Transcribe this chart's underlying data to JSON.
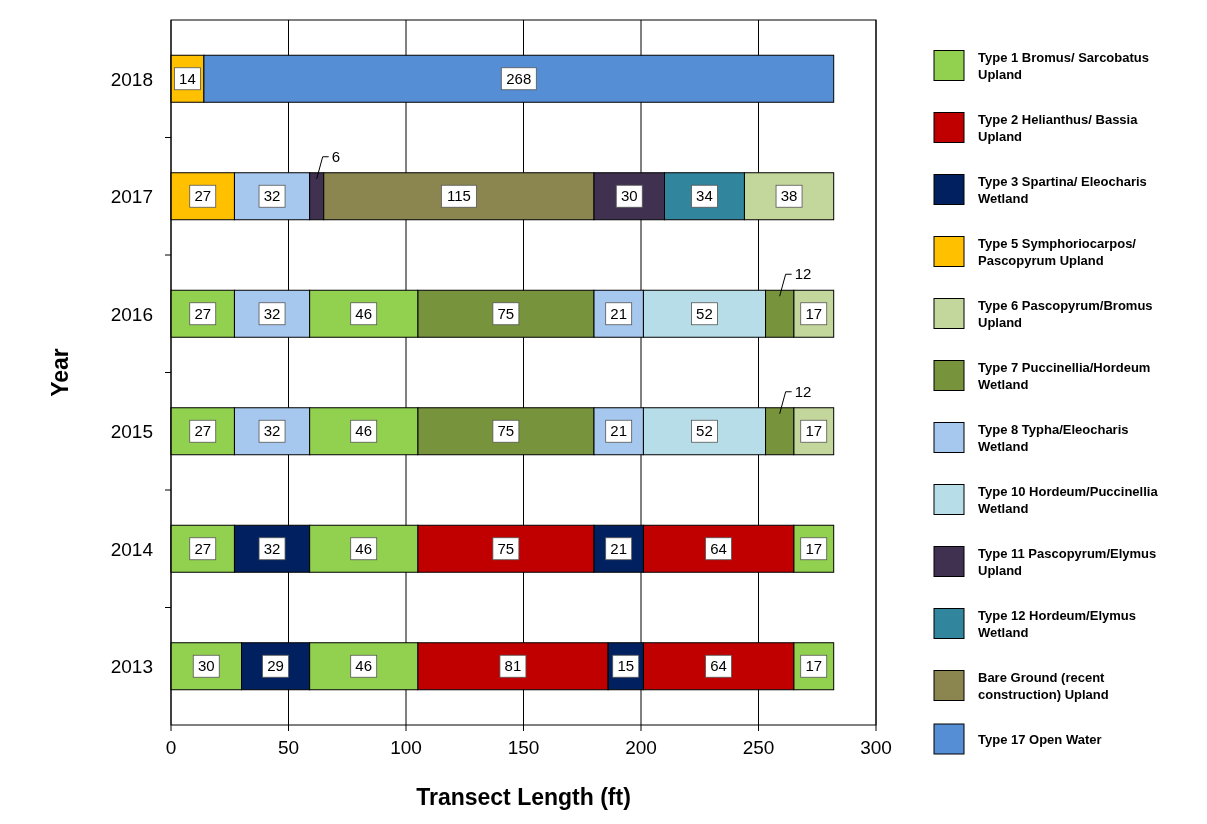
{
  "chart_data": {
    "type": "bar",
    "orientation": "horizontal",
    "categories": [
      "2018",
      "2017",
      "2016",
      "2015",
      "2014",
      "2013"
    ],
    "xlabel": "Transect Length (ft)",
    "ylabel": "Year",
    "xlim": [
      0,
      300
    ],
    "xticks": [
      0,
      50,
      100,
      150,
      200,
      250,
      300
    ],
    "grid": "x",
    "legend": "right",
    "data_labels": true,
    "series": [
      {
        "name": "Type 1 Bromus/ Sarcobatus Upland",
        "color": "#92d050",
        "values": [
          null,
          null,
          27,
          27,
          27,
          30
        ],
        "base": [
          null,
          null,
          0,
          0,
          0,
          0
        ]
      },
      {
        "name": "Type 2 Helianthus/ Bassia Upland",
        "color": "#c00000",
        "values": [
          null,
          null,
          null,
          null,
          75,
          81
        ],
        "base": [
          null,
          null,
          null,
          null,
          105,
          105
        ]
      },
      {
        "name": "Type 3 Spartina/ Eleocharis Wetland",
        "color": "#002060",
        "values": [
          null,
          null,
          null,
          null,
          32,
          29
        ],
        "base": [
          null,
          null,
          null,
          null,
          27,
          30
        ]
      },
      {
        "name": "Type 5 Symphoriocarpos/ Pascopyrum Upland",
        "color": "#ffc000",
        "values": [
          14,
          27,
          null,
          null,
          null,
          null
        ],
        "base": [
          0,
          0,
          null,
          null,
          null,
          null
        ]
      },
      {
        "name": "Type 6 Pascopyrum/Bromus Upland",
        "color": "#c3d69b",
        "values": [
          null,
          38,
          17,
          17,
          null,
          null
        ],
        "base": [
          null,
          244,
          265,
          265,
          null,
          null
        ]
      },
      {
        "name": "Type 7 Puccinellia/Hordeum Wetland",
        "color": "#77933c",
        "values": [
          null,
          null,
          75,
          75,
          null,
          null
        ],
        "base": [
          null,
          null,
          105,
          105,
          null,
          null
        ]
      },
      {
        "name": "Type 8 Typha/Eleocharis Wetland",
        "color": "#a6c8ee",
        "values": [
          null,
          32,
          32,
          32,
          null,
          null
        ],
        "base": [
          null,
          27,
          27,
          27,
          null,
          null
        ]
      },
      {
        "name": "Type 10 Hordeum/Puccinellia Wetland",
        "color": "#b7dee8",
        "values": [
          null,
          null,
          52,
          52,
          null,
          null
        ],
        "base": [
          null,
          null,
          201,
          201,
          null,
          null
        ]
      },
      {
        "name": "Type 11 Pascopyrum/Elymus Upland",
        "color": "#403151",
        "values": [
          null,
          6,
          null,
          null,
          null,
          null
        ],
        "base": [
          null,
          59,
          null,
          null,
          null,
          null
        ]
      },
      {
        "name": "Type 12 Hordeum/Elymus Wetland",
        "color": "#31859c",
        "values": [
          null,
          34,
          null,
          null,
          null,
          null
        ],
        "base": [
          null,
          210,
          null,
          null,
          null,
          null
        ]
      },
      {
        "name": "Bare Ground (recent construction) Upland",
        "color": "#8b8650",
        "values": [
          null,
          115,
          null,
          null,
          null,
          null
        ],
        "base": [
          null,
          65,
          null,
          null,
          null,
          null
        ]
      },
      {
        "name": "Type 17 Open Water",
        "color": "#558ed5",
        "values": [
          268,
          null,
          null,
          null,
          null,
          null
        ],
        "base": [
          14,
          null,
          null,
          null,
          null,
          null
        ]
      },
      {
        "color": "#92d050",
        "values": [
          null,
          null,
          46,
          46,
          46,
          46
        ],
        "base": [
          null,
          null,
          59,
          59,
          59,
          59
        ]
      },
      {
        "color": "#92d050",
        "values": [
          null,
          null,
          null,
          null,
          17,
          17
        ],
        "base": [
          null,
          null,
          null,
          null,
          265,
          265
        ]
      },
      {
        "color": "#c00000",
        "values": [
          null,
          null,
          null,
          null,
          64,
          64
        ],
        "base": [
          null,
          null,
          null,
          null,
          201,
          201
        ]
      },
      {
        "color": "#002060",
        "values": [
          null,
          null,
          null,
          null,
          21,
          15
        ],
        "base": [
          null,
          null,
          null,
          null,
          180,
          186
        ]
      },
      {
        "color": "#77933c",
        "values": [
          null,
          null,
          12,
          12,
          null,
          null
        ],
        "base": [
          null,
          null,
          253,
          253,
          null,
          null
        ]
      },
      {
        "color": "#a6c8ee",
        "values": [
          null,
          null,
          21,
          21,
          null,
          null
        ],
        "base": [
          null,
          null,
          180,
          180,
          null,
          null
        ]
      },
      {
        "color": "#403151",
        "values": [
          null,
          30,
          null,
          null,
          null,
          null
        ],
        "base": [
          null,
          180,
          null,
          null,
          null,
          null
        ]
      }
    ]
  }
}
